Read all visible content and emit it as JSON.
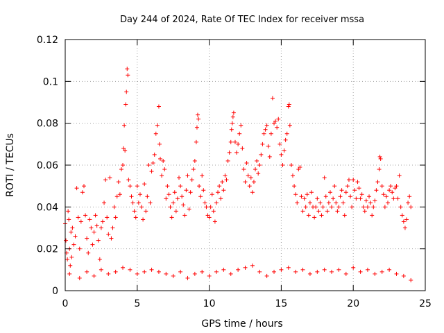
{
  "chart_data": {
    "type": "scatter",
    "title": "Day 244 of 2024, Rate Of TEC Index for receiver mssa",
    "xlabel": "GPS time / hours",
    "ylabel": "ROTI / TECUs",
    "xlim": [
      0,
      25
    ],
    "ylim": [
      0,
      0.12
    ],
    "x_ticks": [
      0,
      5,
      10,
      15,
      20,
      25
    ],
    "y_ticks": [
      0,
      0.02,
      0.04,
      0.06,
      0.08,
      0.1,
      0.12
    ],
    "x_tick_labels": [
      "0",
      "5",
      "10",
      "15",
      "20",
      "25"
    ],
    "y_tick_labels": [
      "0",
      "0.02",
      "0.04",
      "0.06",
      "0.08",
      "0.1",
      "0.12"
    ],
    "grid": true,
    "marker": "plus",
    "color": "#ff0000",
    "series": [
      {
        "points": [
          [
            0.0,
            0.032
          ],
          [
            0.05,
            0.024
          ],
          [
            0.1,
            0.018
          ],
          [
            0.15,
            0.015
          ],
          [
            0.2,
            0.038
          ],
          [
            0.25,
            0.034
          ],
          [
            0.3,
            0.02
          ],
          [
            0.35,
            0.012
          ],
          [
            0.4,
            0.028
          ],
          [
            0.45,
            0.016
          ],
          [
            0.5,
            0.03
          ],
          [
            0.6,
            0.022
          ],
          [
            0.7,
            0.026
          ],
          [
            0.8,
            0.049
          ],
          [
            0.9,
            0.035
          ],
          [
            1.0,
            0.02
          ],
          [
            1.1,
            0.033
          ],
          [
            1.2,
            0.047
          ],
          [
            1.3,
            0.05
          ],
          [
            1.4,
            0.036
          ],
          [
            1.5,
            0.025
          ],
          [
            1.6,
            0.018
          ],
          [
            1.7,
            0.034
          ],
          [
            1.8,
            0.03
          ],
          [
            1.9,
            0.022
          ],
          [
            2.0,
            0.028
          ],
          [
            2.1,
            0.036
          ],
          [
            2.2,
            0.031
          ],
          [
            2.3,
            0.024
          ],
          [
            2.4,
            0.015
          ],
          [
            2.5,
            0.03
          ],
          [
            2.6,
            0.033
          ],
          [
            2.7,
            0.042
          ],
          [
            2.8,
            0.053
          ],
          [
            2.9,
            0.035
          ],
          [
            3.0,
            0.027
          ],
          [
            3.1,
            0.054
          ],
          [
            3.2,
            0.025
          ],
          [
            3.3,
            0.03
          ],
          [
            3.4,
            0.04
          ],
          [
            3.5,
            0.035
          ],
          [
            3.6,
            0.045
          ],
          [
            3.7,
            0.052
          ],
          [
            3.8,
            0.046
          ],
          [
            3.9,
            0.058
          ],
          [
            4.0,
            0.06
          ],
          [
            4.05,
            0.068
          ],
          [
            4.1,
            0.079
          ],
          [
            4.15,
            0.067
          ],
          [
            4.2,
            0.089
          ],
          [
            4.25,
            0.095
          ],
          [
            4.3,
            0.106
          ],
          [
            4.35,
            0.103
          ],
          [
            4.4,
            0.053
          ],
          [
            4.5,
            0.05
          ],
          [
            4.6,
            0.045
          ],
          [
            4.7,
            0.042
          ],
          [
            4.8,
            0.038
          ],
          [
            4.9,
            0.035
          ],
          [
            5.0,
            0.05
          ],
          [
            5.1,
            0.042
          ],
          [
            5.2,
            0.046
          ],
          [
            5.3,
            0.04
          ],
          [
            5.4,
            0.034
          ],
          [
            5.5,
            0.051
          ],
          [
            5.6,
            0.038
          ],
          [
            5.7,
            0.045
          ],
          [
            5.8,
            0.06
          ],
          [
            5.9,
            0.042
          ],
          [
            6.0,
            0.057
          ],
          [
            6.1,
            0.061
          ],
          [
            6.2,
            0.065
          ],
          [
            6.3,
            0.075
          ],
          [
            6.4,
            0.079
          ],
          [
            6.5,
            0.088
          ],
          [
            6.55,
            0.07
          ],
          [
            6.6,
            0.063
          ],
          [
            6.7,
            0.055
          ],
          [
            6.8,
            0.062
          ],
          [
            6.9,
            0.058
          ],
          [
            7.0,
            0.044
          ],
          [
            7.1,
            0.05
          ],
          [
            7.2,
            0.046
          ],
          [
            7.3,
            0.04
          ],
          [
            7.4,
            0.035
          ],
          [
            7.5,
            0.042
          ],
          [
            7.6,
            0.047
          ],
          [
            7.7,
            0.038
          ],
          [
            7.8,
            0.044
          ],
          [
            7.9,
            0.054
          ],
          [
            8.0,
            0.05
          ],
          [
            8.1,
            0.045
          ],
          [
            8.2,
            0.041
          ],
          [
            8.3,
            0.036
          ],
          [
            8.4,
            0.048
          ],
          [
            8.5,
            0.055
          ],
          [
            8.6,
            0.039
          ],
          [
            8.7,
            0.047
          ],
          [
            8.8,
            0.053
          ],
          [
            8.9,
            0.058
          ],
          [
            9.0,
            0.062
          ],
          [
            9.1,
            0.071
          ],
          [
            9.15,
            0.078
          ],
          [
            9.2,
            0.084
          ],
          [
            9.25,
            0.082
          ],
          [
            9.3,
            0.05
          ],
          [
            9.4,
            0.045
          ],
          [
            9.5,
            0.055
          ],
          [
            9.6,
            0.048
          ],
          [
            9.7,
            0.042
          ],
          [
            9.8,
            0.04
          ],
          [
            9.9,
            0.036
          ],
          [
            10.0,
            0.035
          ],
          [
            10.1,
            0.04
          ],
          [
            10.2,
            0.046
          ],
          [
            10.3,
            0.038
          ],
          [
            10.4,
            0.033
          ],
          [
            10.5,
            0.042
          ],
          [
            10.6,
            0.047
          ],
          [
            10.7,
            0.05
          ],
          [
            10.8,
            0.044
          ],
          [
            10.9,
            0.052
          ],
          [
            11.0,
            0.048
          ],
          [
            11.1,
            0.055
          ],
          [
            11.2,
            0.053
          ],
          [
            11.3,
            0.062
          ],
          [
            11.4,
            0.066
          ],
          [
            11.5,
            0.071
          ],
          [
            11.55,
            0.077
          ],
          [
            11.6,
            0.08
          ],
          [
            11.65,
            0.083
          ],
          [
            11.7,
            0.085
          ],
          [
            11.8,
            0.071
          ],
          [
            11.9,
            0.066
          ],
          [
            12.0,
            0.07
          ],
          [
            12.1,
            0.075
          ],
          [
            12.2,
            0.079
          ],
          [
            12.3,
            0.068
          ],
          [
            12.4,
            0.058
          ],
          [
            12.5,
            0.052
          ],
          [
            12.6,
            0.061
          ],
          [
            12.7,
            0.055
          ],
          [
            12.8,
            0.05
          ],
          [
            12.9,
            0.054
          ],
          [
            13.0,
            0.047
          ],
          [
            13.1,
            0.052
          ],
          [
            13.2,
            0.058
          ],
          [
            13.3,
            0.062
          ],
          [
            13.4,
            0.056
          ],
          [
            13.5,
            0.06
          ],
          [
            13.6,
            0.065
          ],
          [
            13.7,
            0.07
          ],
          [
            13.8,
            0.075
          ],
          [
            13.9,
            0.077
          ],
          [
            14.0,
            0.079
          ],
          [
            14.1,
            0.069
          ],
          [
            14.2,
            0.064
          ],
          [
            14.3,
            0.075
          ],
          [
            14.4,
            0.092
          ],
          [
            14.5,
            0.08
          ],
          [
            14.6,
            0.081
          ],
          [
            14.7,
            0.078
          ],
          [
            14.8,
            0.082
          ],
          [
            14.9,
            0.07
          ],
          [
            15.0,
            0.065
          ],
          [
            15.1,
            0.06
          ],
          [
            15.2,
            0.067
          ],
          [
            15.3,
            0.072
          ],
          [
            15.4,
            0.075
          ],
          [
            15.5,
            0.088
          ],
          [
            15.55,
            0.089
          ],
          [
            15.6,
            0.079
          ],
          [
            15.7,
            0.06
          ],
          [
            15.8,
            0.055
          ],
          [
            15.9,
            0.05
          ],
          [
            16.0,
            0.046
          ],
          [
            16.1,
            0.042
          ],
          [
            16.2,
            0.058
          ],
          [
            16.3,
            0.059
          ],
          [
            16.4,
            0.045
          ],
          [
            16.5,
            0.038
          ],
          [
            16.6,
            0.044
          ],
          [
            16.7,
            0.04
          ],
          [
            16.8,
            0.046
          ],
          [
            16.9,
            0.036
          ],
          [
            17.0,
            0.042
          ],
          [
            17.1,
            0.047
          ],
          [
            17.2,
            0.04
          ],
          [
            17.3,
            0.035
          ],
          [
            17.4,
            0.04
          ],
          [
            17.5,
            0.044
          ],
          [
            17.6,
            0.038
          ],
          [
            17.7,
            0.042
          ],
          [
            17.8,
            0.036
          ],
          [
            17.9,
            0.04
          ],
          [
            18.0,
            0.054
          ],
          [
            18.1,
            0.045
          ],
          [
            18.2,
            0.038
          ],
          [
            18.3,
            0.042
          ],
          [
            18.4,
            0.047
          ],
          [
            18.5,
            0.04
          ],
          [
            18.6,
            0.044
          ],
          [
            18.7,
            0.05
          ],
          [
            18.8,
            0.042
          ],
          [
            18.9,
            0.038
          ],
          [
            19.0,
            0.04
          ],
          [
            19.1,
            0.045
          ],
          [
            19.2,
            0.048
          ],
          [
            19.3,
            0.042
          ],
          [
            19.4,
            0.036
          ],
          [
            19.5,
            0.047
          ],
          [
            19.6,
            0.05
          ],
          [
            19.7,
            0.053
          ],
          [
            19.8,
            0.045
          ],
          [
            19.9,
            0.04
          ],
          [
            20.0,
            0.053
          ],
          [
            20.1,
            0.048
          ],
          [
            20.2,
            0.044
          ],
          [
            20.3,
            0.052
          ],
          [
            20.4,
            0.049
          ],
          [
            20.5,
            0.044
          ],
          [
            20.6,
            0.046
          ],
          [
            20.7,
            0.04
          ],
          [
            20.8,
            0.038
          ],
          [
            20.9,
            0.043
          ],
          [
            21.0,
            0.04
          ],
          [
            21.1,
            0.045
          ],
          [
            21.2,
            0.042
          ],
          [
            21.3,
            0.036
          ],
          [
            21.4,
            0.04
          ],
          [
            21.5,
            0.043
          ],
          [
            21.6,
            0.048
          ],
          [
            21.7,
            0.052
          ],
          [
            21.8,
            0.058
          ],
          [
            21.85,
            0.064
          ],
          [
            21.9,
            0.063
          ],
          [
            22.0,
            0.05
          ],
          [
            22.1,
            0.046
          ],
          [
            22.2,
            0.04
          ],
          [
            22.3,
            0.045
          ],
          [
            22.4,
            0.042
          ],
          [
            22.5,
            0.048
          ],
          [
            22.6,
            0.05
          ],
          [
            22.7,
            0.047
          ],
          [
            22.8,
            0.044
          ],
          [
            22.9,
            0.049
          ],
          [
            23.0,
            0.05
          ],
          [
            23.1,
            0.044
          ],
          [
            23.2,
            0.055
          ],
          [
            23.3,
            0.04
          ],
          [
            23.4,
            0.036
          ],
          [
            23.5,
            0.033
          ],
          [
            23.6,
            0.03
          ],
          [
            23.7,
            0.034
          ],
          [
            23.8,
            0.042
          ],
          [
            23.9,
            0.045
          ],
          [
            24.0,
            0.04
          ],
          [
            0.3,
            0.008
          ],
          [
            1.0,
            0.006
          ],
          [
            1.5,
            0.009
          ],
          [
            2.0,
            0.007
          ],
          [
            2.5,
            0.01
          ],
          [
            3.0,
            0.008
          ],
          [
            3.5,
            0.009
          ],
          [
            4.0,
            0.011
          ],
          [
            4.5,
            0.01
          ],
          [
            5.0,
            0.008
          ],
          [
            5.5,
            0.009
          ],
          [
            6.0,
            0.01
          ],
          [
            6.5,
            0.009
          ],
          [
            7.0,
            0.008
          ],
          [
            7.5,
            0.007
          ],
          [
            8.0,
            0.009
          ],
          [
            8.5,
            0.006
          ],
          [
            9.0,
            0.008
          ],
          [
            9.5,
            0.009
          ],
          [
            10.0,
            0.007
          ],
          [
            10.5,
            0.009
          ],
          [
            11.0,
            0.01
          ],
          [
            11.5,
            0.008
          ],
          [
            12.0,
            0.01
          ],
          [
            12.5,
            0.011
          ],
          [
            13.0,
            0.012
          ],
          [
            13.5,
            0.009
          ],
          [
            14.0,
            0.007
          ],
          [
            14.5,
            0.009
          ],
          [
            15.0,
            0.01
          ],
          [
            15.5,
            0.011
          ],
          [
            16.0,
            0.009
          ],
          [
            16.5,
            0.01
          ],
          [
            17.0,
            0.008
          ],
          [
            17.5,
            0.009
          ],
          [
            18.0,
            0.01
          ],
          [
            18.5,
            0.009
          ],
          [
            19.0,
            0.01
          ],
          [
            19.5,
            0.008
          ],
          [
            20.0,
            0.011
          ],
          [
            20.5,
            0.009
          ],
          [
            21.0,
            0.01
          ],
          [
            21.5,
            0.008
          ],
          [
            22.0,
            0.009
          ],
          [
            22.5,
            0.01
          ],
          [
            23.0,
            0.008
          ],
          [
            23.5,
            0.007
          ],
          [
            24.0,
            0.005
          ]
        ]
      }
    ]
  }
}
